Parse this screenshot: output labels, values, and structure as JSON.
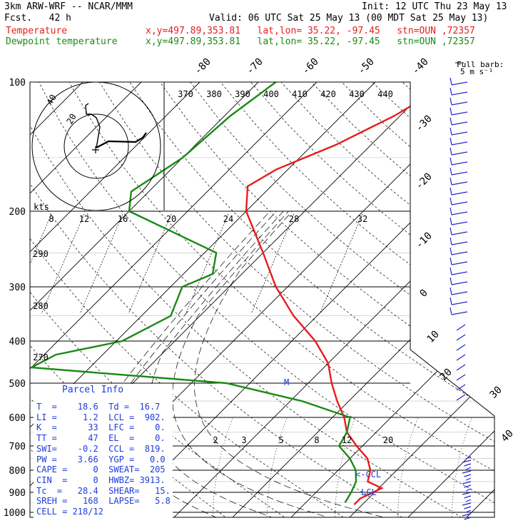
{
  "header": {
    "model": "3km ARW-WRF -- NCAR/MMM",
    "init": "Init: 12 UTC Thu 23 May 13",
    "fcst": "Fcst.   42 h",
    "valid": "Valid: 06 UTC Sat 25 May 13 (00 MDT Sat 25 May 13)",
    "temp_label": "Temperature",
    "temp_info": "x,y=497.89,353.81   lat,lon= 35.22, -97.45   stn=OUN ,72357",
    "dew_label": "Dewpoint temperature",
    "dew_info": "x,y=497.89,353.81   lat,lon= 35.22, -97.45   stn=OUN ,72357"
  },
  "colors": {
    "temperature": "#e81c1c",
    "dewpoint": "#1a8a14",
    "info": "#1e3cd6",
    "wind": "#2424d0"
  },
  "barb_label": [
    "Full barb:",
    "5 m s⁻¹"
  ],
  "chart_data": {
    "type": "line",
    "ylabel_ticks": [
      "100",
      "200",
      "300",
      "400",
      "500",
      "600",
      "700",
      "800",
      "900",
      "1000"
    ],
    "pressure_axis": [
      100,
      200,
      300,
      400,
      500,
      600,
      700,
      800,
      900,
      1000
    ],
    "skewed_temp_labels": [
      "-80",
      "-70",
      "-60",
      "-50",
      "-40",
      "-30",
      "-20",
      "-10",
      "0",
      "10",
      "20",
      "30",
      "40"
    ],
    "theta_labels": [
      "370",
      "380",
      "390",
      "400",
      "410",
      "420",
      "430",
      "440"
    ],
    "theta_left_labels": [
      "290",
      "280",
      "270"
    ],
    "mixing_ratio_labels": [
      "2",
      "3",
      "5",
      "8",
      "12",
      "20"
    ],
    "hodograph_labels": [
      "kts",
      "8",
      "12",
      "16",
      "20",
      "24",
      "28",
      "32"
    ],
    "hodograph_ring_labels": [
      "20",
      "40"
    ],
    "level_markers": [
      "<-CCL",
      "LCL",
      "M"
    ],
    "series": [
      {
        "name": "Temperature",
        "points": [
          [
            100,
            -37
          ],
          [
            120,
            -41
          ],
          [
            140,
            -46
          ],
          [
            160,
            -52
          ],
          [
            175,
            -54
          ],
          [
            200,
            -50
          ],
          [
            250,
            -40
          ],
          [
            300,
            -32
          ],
          [
            350,
            -24
          ],
          [
            400,
            -16
          ],
          [
            450,
            -10
          ],
          [
            500,
            -6
          ],
          [
            550,
            -2
          ],
          [
            600,
            2
          ],
          [
            650,
            5
          ],
          [
            700,
            9
          ],
          [
            750,
            13
          ],
          [
            800,
            15.5
          ],
          [
            850,
            17
          ],
          [
            880,
            20.5
          ],
          [
            930,
            18.6
          ],
          [
            960,
            18.6
          ]
        ]
      },
      {
        "name": "Dewpoint temperature",
        "points": [
          [
            100,
            -67
          ],
          [
            120,
            -69
          ],
          [
            150,
            -70
          ],
          [
            180,
            -73
          ],
          [
            200,
            -70
          ],
          [
            250,
            -48
          ],
          [
            280,
            -45
          ],
          [
            300,
            -48
          ],
          [
            350,
            -45
          ],
          [
            400,
            -49
          ],
          [
            430,
            -58
          ],
          [
            460,
            -60
          ],
          [
            500,
            -24
          ],
          [
            550,
            -8
          ],
          [
            600,
            3
          ],
          [
            650,
            5
          ],
          [
            700,
            6
          ],
          [
            750,
            10
          ],
          [
            800,
            13
          ],
          [
            850,
            15
          ],
          [
            900,
            16
          ],
          [
            950,
            16.7
          ]
        ]
      }
    ]
  },
  "parcel_info": {
    "title": "Parcel Info",
    "lines": [
      "T  =    18.6  Td =  16.7",
      "LI =     1.2  LCL =  902.",
      "K  =      33  LFC =    0.",
      "TT =      47  EL  =    0.",
      "SWI=    -0.2  CCL =  819.",
      "PW =    3.66  YGP =   0.0",
      "CAPE =     0  SWEAT=  205",
      "CIN  =     0  HWBZ= 3913.",
      "Tc  =   28.4  SHEAR=   15.",
      "SREH =   168  LAPSE=   5.8",
      "CELL = 218/12"
    ]
  }
}
